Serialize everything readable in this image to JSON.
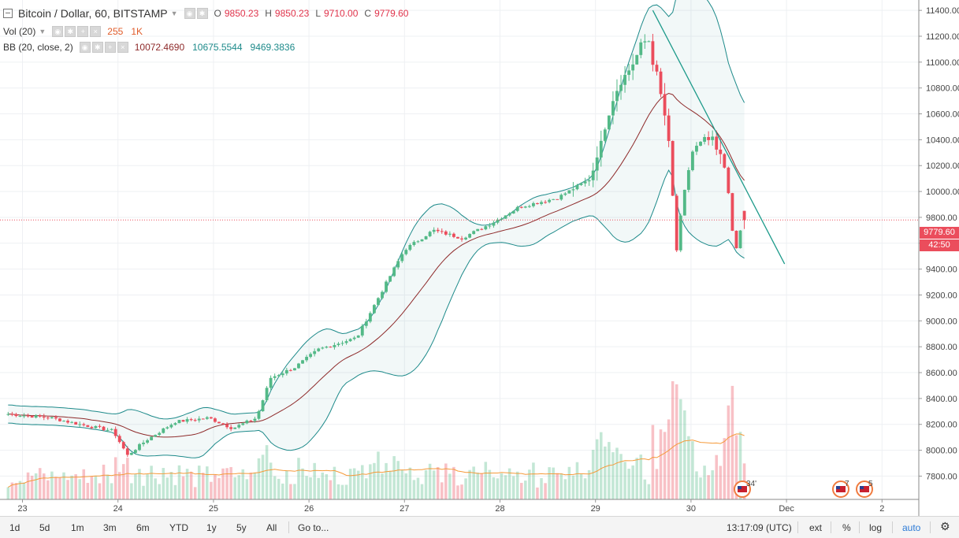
{
  "legend": {
    "symbol": "Bitcoin / Dollar, 60, BITSTAMP",
    "o_label": "O",
    "o_value": "9850.23",
    "h_label": "H",
    "h_value": "9850.23",
    "l_label": "L",
    "l_value": "9710.00",
    "c_label": "C",
    "c_value": "9779.60",
    "vol_label": "Vol (20)",
    "vol_value": "255",
    "vol_ma": "1K",
    "bb_label": "BB (20, close, 2)",
    "bb_mid": "10072.4690",
    "bb_upper": "10675.5544",
    "bb_lower": "9469.3836"
  },
  "price_label": "9779.60",
  "countdown_label": "42:50",
  "event_badges": [
    "34'",
    "7",
    "5"
  ],
  "toolbar": {
    "ranges": [
      "1d",
      "5d",
      "1m",
      "3m",
      "6m",
      "YTD",
      "1y",
      "5y",
      "All"
    ],
    "goto": "Go to...",
    "time": "13:17:09 (UTC)",
    "ext": "ext",
    "percent": "%",
    "log": "log",
    "auto": "auto"
  },
  "colors": {
    "up": "#53b987",
    "down": "#eb4d5c",
    "bb_mid": "#8e2a2a",
    "bb_band": "#1d8a8a",
    "vol_ma": "#f59a3a",
    "trendline": "#1d9a8a"
  },
  "chart_data": {
    "type": "candlestick",
    "interval": "60",
    "y_axis": {
      "ticks": [
        7800,
        8000,
        8200,
        8400,
        8600,
        8800,
        9000,
        9200,
        9400,
        9600,
        9800,
        10000,
        10200,
        10400,
        10600,
        10800,
        11000,
        11200,
        11400
      ],
      "range": [
        7620,
        11480
      ],
      "position": "right"
    },
    "x_axis": {
      "ticks": [
        "23",
        "24",
        "25",
        "26",
        "27",
        "28",
        "29",
        "30",
        "Dec",
        "2"
      ]
    },
    "close_points": [
      {
        "day": 22.85,
        "close": 8280
      },
      {
        "day": 23.3,
        "close": 8250
      },
      {
        "day": 23.6,
        "close": 8200
      },
      {
        "day": 23.95,
        "close": 8150
      },
      {
        "day": 24.1,
        "close": 7960
      },
      {
        "day": 24.3,
        "close": 8080
      },
      {
        "day": 24.6,
        "close": 8220
      },
      {
        "day": 24.95,
        "close": 8250
      },
      {
        "day": 25.2,
        "close": 8170
      },
      {
        "day": 25.45,
        "close": 8250
      },
      {
        "day": 25.6,
        "close": 8560
      },
      {
        "day": 25.85,
        "close": 8640
      },
      {
        "day": 26.1,
        "close": 8780
      },
      {
        "day": 26.5,
        "close": 8870
      },
      {
        "day": 26.8,
        "close": 9280
      },
      {
        "day": 27.0,
        "close": 9550
      },
      {
        "day": 27.3,
        "close": 9700
      },
      {
        "day": 27.6,
        "close": 9640
      },
      {
        "day": 27.9,
        "close": 9750
      },
      {
        "day": 28.2,
        "close": 9880
      },
      {
        "day": 28.6,
        "close": 9950
      },
      {
        "day": 28.95,
        "close": 10100
      },
      {
        "day": 29.2,
        "close": 10750
      },
      {
        "day": 29.55,
        "close": 11200
      },
      {
        "day": 29.75,
        "close": 10500
      },
      {
        "day": 29.85,
        "close": 9550
      },
      {
        "day": 30.0,
        "close": 10300
      },
      {
        "day": 30.2,
        "close": 10400
      },
      {
        "day": 30.38,
        "close": 10150
      },
      {
        "day": 30.45,
        "close": 9480
      },
      {
        "day": 30.55,
        "close": 9780
      }
    ],
    "last": {
      "open": 9850.23,
      "high": 9850.23,
      "low": 9710.0,
      "close": 9779.6
    },
    "indicators": {
      "volume": {
        "period": 20,
        "value": 255,
        "ma": "1K"
      },
      "bollinger": {
        "period": 20,
        "source": "close",
        "mult": 2,
        "basis": 10072.469,
        "upper": 10675.5544,
        "lower": 9469.3836
      }
    },
    "trendline": {
      "from": {
        "day": 29.6,
        "price": 11400
      },
      "to": {
        "day": 30.98,
        "price": 9440
      }
    },
    "grid": true
  }
}
